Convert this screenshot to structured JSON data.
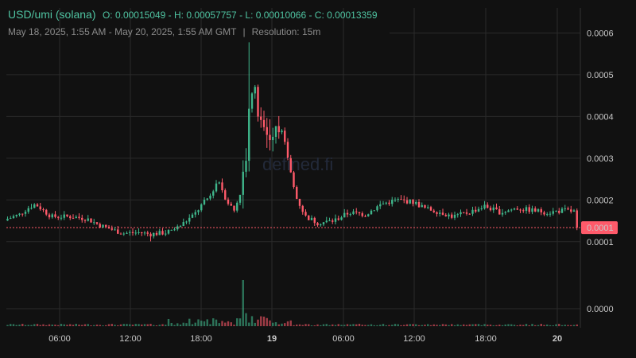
{
  "header": {
    "pair": "USD/umi (solana)",
    "ohlc": "O: 0.00015049 - H: 0.00057757 - L: 0.00010066 - C: 0.00013359",
    "range": "May 18, 2025, 1:55 AM - May 20, 2025, 1:55 AM GMT",
    "separator": "|",
    "resolution": "Resolution: 15m"
  },
  "watermark": "defined.fi",
  "colors": {
    "up": "#3fb68b",
    "down": "#ff5a6a",
    "price_line": "#ff5a6a",
    "grid": "#2a2a2a",
    "text": "#c8c8c8"
  },
  "chart_data": {
    "type": "candlestick",
    "x_ticks": [
      "06:00",
      "12:00",
      "18:00",
      "19",
      "06:00",
      "12:00",
      "18:00",
      "20"
    ],
    "y_ticks": [
      "0.0006",
      "0.0005",
      "0.0004",
      "0.0003",
      "0.0002",
      "0.0001"
    ],
    "volume_tick": "0.0000",
    "last_price_label": "0.0001",
    "last_price": 0.00013359,
    "ylim": [
      5e-05,
      0.00066
    ],
    "open": 0.00015049,
    "high": 0.00057757,
    "low": 0.00010066,
    "close": 0.00013359,
    "grid": true,
    "trend": [
      [
        0,
        0.000155
      ],
      [
        15,
        0.000165
      ],
      [
        25,
        0.00018
      ],
      [
        35,
        0.00019
      ],
      [
        45,
        0.000175
      ],
      [
        55,
        0.00016
      ],
      [
        80,
        0.00016
      ],
      [
        100,
        0.000155
      ],
      [
        115,
        0.00014
      ],
      [
        130,
        0.00013
      ],
      [
        145,
        0.00012
      ],
      [
        165,
        0.000122
      ],
      [
        180,
        0.000118
      ],
      [
        200,
        0.000122
      ],
      [
        215,
        0.000135
      ],
      [
        225,
        0.00015
      ],
      [
        235,
        0.000165
      ],
      [
        245,
        0.00019
      ],
      [
        255,
        0.00021
      ],
      [
        265,
        0.00025
      ],
      [
        275,
        0.0002
      ],
      [
        285,
        0.000175
      ],
      [
        295,
        0.00023
      ],
      [
        300,
        0.00032
      ],
      [
        305,
        0.00048
      ],
      [
        312,
        0.00044
      ],
      [
        320,
        0.00036
      ],
      [
        330,
        0.00036
      ],
      [
        340,
        0.0004
      ],
      [
        348,
        0.00034
      ],
      [
        355,
        0.00028
      ],
      [
        362,
        0.00021
      ],
      [
        375,
        0.00016
      ],
      [
        390,
        0.000145
      ],
      [
        410,
        0.00015
      ],
      [
        430,
        0.00017
      ],
      [
        450,
        0.000165
      ],
      [
        470,
        0.00019
      ],
      [
        490,
        0.0002
      ],
      [
        510,
        0.000195
      ],
      [
        525,
        0.00018
      ],
      [
        545,
        0.00017
      ],
      [
        560,
        0.00016
      ],
      [
        580,
        0.00017
      ],
      [
        600,
        0.000185
      ],
      [
        620,
        0.00017
      ],
      [
        640,
        0.00018
      ],
      [
        660,
        0.000175
      ],
      [
        680,
        0.00017
      ],
      [
        700,
        0.000175
      ],
      [
        720,
        0.00017
      ],
      [
        730,
        0.000134
      ]
    ]
  }
}
